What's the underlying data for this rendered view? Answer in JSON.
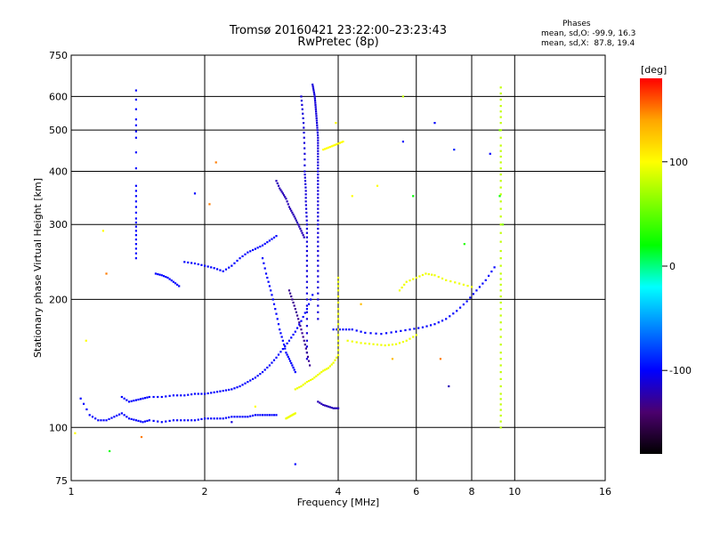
{
  "chart_data": {
    "type": "scatter",
    "title": "Tromsø 20160421 23:22:00–23:23:43",
    "subtitle": "RwPretec (8p)",
    "xlabel": "Frequency [MHz]",
    "ylabel": "Stationary phase Virtual Height [km]",
    "x_scale": "log",
    "y_scale": "log",
    "xlim": [
      1,
      16
    ],
    "ylim": [
      75,
      750
    ],
    "x_ticks": [
      1,
      2,
      4,
      6,
      8,
      10,
      16
    ],
    "y_ticks": [
      75,
      100,
      200,
      300,
      400,
      500,
      600,
      750
    ],
    "grid": true,
    "phases": {
      "heading": "Phases",
      "mean_sd_O": "mean, sd,O: -99.9, 16.3",
      "mean_sd_X": "mean, sd,X:  87.8, 19.4"
    },
    "colorbar": {
      "label": "[deg]",
      "ticks": [
        100,
        0,
        -100
      ],
      "range": [
        -180,
        180
      ],
      "colors": [
        "#000000",
        "#4b006e",
        "#0000ff",
        "#0080ff",
        "#00ffff",
        "#00ff00",
        "#80ff00",
        "#ffff00",
        "#ffa500",
        "#ff0000"
      ]
    },
    "traces": [
      {
        "name": "",
        "phase": -100,
        "points": [
          [
            1.05,
            117
          ],
          [
            1.1,
            107
          ],
          [
            1.15,
            104
          ],
          [
            1.2,
            104
          ],
          [
            1.25,
            106
          ],
          [
            1.3,
            108
          ],
          [
            1.35,
            105
          ],
          [
            1.4,
            104
          ],
          [
            1.45,
            103
          ],
          [
            1.5,
            104
          ],
          [
            1.6,
            103
          ],
          [
            1.7,
            104
          ],
          [
            1.8,
            104
          ],
          [
            1.9,
            104
          ],
          [
            2.0,
            105
          ],
          [
            2.1,
            105
          ],
          [
            2.2,
            105
          ],
          [
            2.3,
            106
          ],
          [
            2.4,
            106
          ],
          [
            2.5,
            106
          ],
          [
            2.6,
            107
          ],
          [
            2.7,
            107
          ],
          [
            2.8,
            107
          ],
          [
            2.9,
            107
          ]
        ]
      },
      {
        "name": "",
        "phase": -100,
        "points": [
          [
            1.3,
            118
          ],
          [
            1.35,
            115
          ],
          [
            1.4,
            116
          ],
          [
            1.45,
            117
          ],
          [
            1.5,
            118
          ],
          [
            1.6,
            118
          ],
          [
            1.7,
            119
          ],
          [
            1.8,
            119
          ],
          [
            1.9,
            120
          ],
          [
            2.0,
            120
          ],
          [
            2.1,
            121
          ],
          [
            2.2,
            122
          ],
          [
            2.3,
            123
          ],
          [
            2.4,
            125
          ],
          [
            2.5,
            128
          ],
          [
            2.6,
            131
          ],
          [
            2.7,
            135
          ],
          [
            2.8,
            140
          ],
          [
            2.9,
            146
          ],
          [
            3.0,
            153
          ],
          [
            3.1,
            160
          ],
          [
            3.2,
            168
          ],
          [
            3.3,
            178
          ],
          [
            3.4,
            190
          ],
          [
            3.5,
            205
          ]
        ]
      },
      {
        "name": "",
        "phase": -110,
        "points": [
          [
            3.5,
            640
          ],
          [
            3.52,
            620
          ],
          [
            3.54,
            600
          ],
          [
            3.55,
            580
          ],
          [
            3.56,
            560
          ],
          [
            3.57,
            540
          ],
          [
            3.58,
            520
          ],
          [
            3.59,
            500
          ],
          [
            3.6,
            480
          ],
          [
            3.6,
            460
          ],
          [
            3.6,
            440
          ],
          [
            3.6,
            420
          ],
          [
            3.6,
            400
          ],
          [
            3.6,
            380
          ],
          [
            3.6,
            360
          ],
          [
            3.6,
            340
          ],
          [
            3.6,
            320
          ],
          [
            3.6,
            300
          ],
          [
            3.6,
            280
          ],
          [
            3.6,
            260
          ],
          [
            3.6,
            240
          ],
          [
            3.6,
            220
          ],
          [
            3.6,
            200
          ],
          [
            3.6,
            180
          ]
        ]
      },
      {
        "name": "",
        "phase": -110,
        "points": [
          [
            3.3,
            600
          ],
          [
            3.32,
            560
          ],
          [
            3.34,
            520
          ],
          [
            3.35,
            480
          ],
          [
            3.36,
            440
          ],
          [
            3.36,
            400
          ],
          [
            3.37,
            380
          ],
          [
            3.38,
            360
          ],
          [
            3.38,
            340
          ],
          [
            3.39,
            320
          ],
          [
            3.4,
            300
          ],
          [
            3.4,
            280
          ],
          [
            3.4,
            260
          ],
          [
            3.4,
            240
          ],
          [
            3.4,
            220
          ],
          [
            3.4,
            200
          ],
          [
            3.4,
            180
          ],
          [
            3.4,
            160
          ],
          [
            3.4,
            145
          ]
        ]
      },
      {
        "name": "",
        "phase": -120,
        "points": [
          [
            2.9,
            380
          ],
          [
            2.95,
            365
          ],
          [
            3.0,
            355
          ],
          [
            3.05,
            345
          ],
          [
            3.1,
            330
          ],
          [
            3.15,
            320
          ],
          [
            3.2,
            310
          ],
          [
            3.25,
            300
          ],
          [
            3.3,
            290
          ],
          [
            3.35,
            280
          ]
        ]
      },
      {
        "name": "",
        "phase": -100,
        "points": [
          [
            1.8,
            245
          ],
          [
            1.9,
            243
          ],
          [
            2.0,
            240
          ],
          [
            2.1,
            237
          ],
          [
            2.2,
            233
          ],
          [
            2.3,
            240
          ],
          [
            2.4,
            250
          ],
          [
            2.5,
            258
          ],
          [
            2.6,
            263
          ],
          [
            2.7,
            268
          ],
          [
            2.8,
            275
          ],
          [
            2.9,
            282
          ]
        ]
      },
      {
        "name": "",
        "phase": -100,
        "points": [
          [
            1.55,
            230
          ],
          [
            1.6,
            228
          ],
          [
            1.65,
            225
          ],
          [
            1.7,
            220
          ],
          [
            1.75,
            215
          ]
        ]
      },
      {
        "name": "",
        "phase": -120,
        "points": [
          [
            3.6,
            115
          ],
          [
            3.7,
            113
          ],
          [
            3.8,
            112
          ],
          [
            3.9,
            111
          ],
          [
            4.0,
            111
          ]
        ]
      },
      {
        "name": "",
        "phase": -100,
        "points": [
          [
            3.9,
            170
          ],
          [
            4.1,
            170
          ],
          [
            4.3,
            170
          ],
          [
            4.6,
            167
          ],
          [
            5.0,
            166
          ],
          [
            5.4,
            168
          ],
          [
            5.8,
            170
          ],
          [
            6.2,
            172
          ],
          [
            6.6,
            175
          ],
          [
            7.0,
            180
          ],
          [
            7.4,
            188
          ],
          [
            7.8,
            198
          ],
          [
            8.2,
            210
          ],
          [
            8.6,
            222
          ],
          [
            9.0,
            238
          ]
        ]
      },
      {
        "name": "",
        "phase": 95,
        "points": [
          [
            3.2,
            123
          ],
          [
            3.3,
            125
          ],
          [
            3.4,
            128
          ],
          [
            3.5,
            130
          ],
          [
            3.6,
            133
          ],
          [
            3.7,
            136
          ],
          [
            3.8,
            138
          ],
          [
            3.9,
            142
          ],
          [
            4.0,
            148
          ],
          [
            4.0,
            160
          ],
          [
            4.0,
            175
          ],
          [
            4.0,
            190
          ],
          [
            4.0,
            210
          ],
          [
            4.0,
            225
          ]
        ]
      },
      {
        "name": "",
        "phase": 95,
        "points": [
          [
            3.05,
            105
          ],
          [
            3.1,
            106
          ],
          [
            3.15,
            107
          ],
          [
            3.2,
            108
          ]
        ]
      },
      {
        "name": "",
        "phase": 100,
        "points": [
          [
            3.7,
            450
          ],
          [
            3.8,
            455
          ],
          [
            3.9,
            460
          ],
          [
            4.0,
            465
          ],
          [
            4.1,
            470
          ]
        ]
      },
      {
        "name": "",
        "phase": 95,
        "points": [
          [
            4.2,
            160
          ],
          [
            4.5,
            158
          ],
          [
            4.8,
            157
          ],
          [
            5.1,
            156
          ],
          [
            5.4,
            157
          ],
          [
            5.7,
            160
          ],
          [
            6.0,
            165
          ]
        ]
      },
      {
        "name": "",
        "phase": 95,
        "points": [
          [
            5.5,
            210
          ],
          [
            5.7,
            220
          ],
          [
            6.0,
            225
          ],
          [
            6.3,
            230
          ],
          [
            6.6,
            228
          ],
          [
            7.0,
            222
          ],
          [
            7.5,
            218
          ],
          [
            8.0,
            214
          ]
        ]
      },
      {
        "name": "",
        "phase": 80,
        "points": [
          [
            9.3,
            100
          ],
          [
            9.3,
            110
          ],
          [
            9.3,
            120
          ],
          [
            9.3,
            135
          ],
          [
            9.3,
            150
          ],
          [
            9.3,
            170
          ],
          [
            9.3,
            190
          ],
          [
            9.3,
            210
          ],
          [
            9.3,
            230
          ],
          [
            9.3,
            260
          ],
          [
            9.3,
            300
          ],
          [
            9.3,
            340
          ],
          [
            9.3,
            380
          ],
          [
            9.3,
            420
          ],
          [
            9.3,
            460
          ],
          [
            9.3,
            520
          ],
          [
            9.3,
            570
          ],
          [
            9.3,
            630
          ]
        ]
      },
      {
        "name": "",
        "phase": -100,
        "points": [
          [
            1.4,
            620
          ],
          [
            1.4,
            530
          ],
          [
            1.4,
            480
          ],
          [
            1.4,
            370
          ],
          [
            1.4,
            340
          ],
          [
            1.4,
            310
          ],
          [
            1.4,
            290
          ],
          [
            1.4,
            270
          ],
          [
            1.4,
            250
          ]
        ]
      },
      {
        "name": "",
        "phase": -100,
        "points": [
          [
            2.7,
            250
          ],
          [
            2.75,
            230
          ],
          [
            2.8,
            215
          ],
          [
            2.85,
            200
          ],
          [
            2.9,
            185
          ],
          [
            2.95,
            170
          ],
          [
            3.0,
            160
          ],
          [
            3.05,
            150
          ],
          [
            3.1,
            145
          ],
          [
            3.15,
            140
          ],
          [
            3.2,
            135
          ]
        ]
      },
      {
        "name": "",
        "phase": -130,
        "points": [
          [
            3.1,
            210
          ],
          [
            3.15,
            200
          ],
          [
            3.2,
            190
          ],
          [
            3.25,
            180
          ],
          [
            3.3,
            170
          ],
          [
            3.35,
            160
          ],
          [
            3.4,
            150
          ],
          [
            3.45,
            140
          ]
        ]
      }
    ],
    "scatter": [
      {
        "x": 1.02,
        "y": 97,
        "phase": 100
      },
      {
        "x": 1.08,
        "y": 160,
        "phase": 100
      },
      {
        "x": 1.18,
        "y": 290,
        "phase": 100
      },
      {
        "x": 1.22,
        "y": 88,
        "phase": 20
      },
      {
        "x": 1.2,
        "y": 230,
        "phase": 150
      },
      {
        "x": 1.44,
        "y": 95,
        "phase": 150
      },
      {
        "x": 1.9,
        "y": 355,
        "phase": -100
      },
      {
        "x": 2.05,
        "y": 335,
        "phase": 150
      },
      {
        "x": 2.12,
        "y": 420,
        "phase": 150
      },
      {
        "x": 3.2,
        "y": 82,
        "phase": -100
      },
      {
        "x": 3.95,
        "y": 520,
        "phase": 100
      },
      {
        "x": 4.3,
        "y": 350,
        "phase": 100
      },
      {
        "x": 4.9,
        "y": 370,
        "phase": 100
      },
      {
        "x": 5.6,
        "y": 600,
        "phase": 80
      },
      {
        "x": 5.6,
        "y": 470,
        "phase": -100
      },
      {
        "x": 5.9,
        "y": 350,
        "phase": 20
      },
      {
        "x": 6.6,
        "y": 520,
        "phase": -100
      },
      {
        "x": 7.3,
        "y": 450,
        "phase": -90
      },
      {
        "x": 7.7,
        "y": 270,
        "phase": 30
      },
      {
        "x": 7.1,
        "y": 125,
        "phase": -120
      },
      {
        "x": 8.8,
        "y": 440,
        "phase": -100
      },
      {
        "x": 9.25,
        "y": 350,
        "phase": 20
      },
      {
        "x": 9.4,
        "y": 300,
        "phase": 60
      },
      {
        "x": 9.25,
        "y": 500,
        "phase": 60
      },
      {
        "x": 2.3,
        "y": 103,
        "phase": -110
      },
      {
        "x": 2.6,
        "y": 112,
        "phase": 100
      },
      {
        "x": 4.5,
        "y": 195,
        "phase": 130
      },
      {
        "x": 5.3,
        "y": 145,
        "phase": 130
      },
      {
        "x": 6.8,
        "y": 145,
        "phase": 150
      }
    ]
  }
}
